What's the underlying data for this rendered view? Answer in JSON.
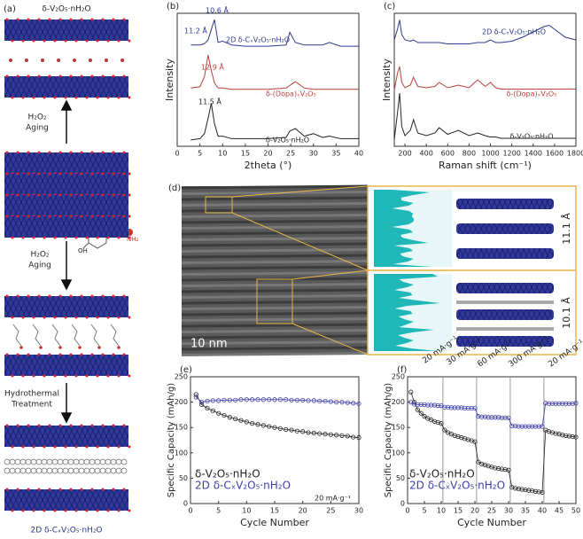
{
  "panel_a": {
    "label": "(a)",
    "top_title": "δ-V₂O₅·nH₂O",
    "arrow_labels": [
      [
        "H₂O₂",
        "Aging"
      ],
      [
        "H₂O₂",
        "Aging"
      ],
      [
        "Hydrothermal",
        "Treatment"
      ]
    ],
    "molecule_labels": [
      "OH",
      "OH",
      "NH₂"
    ],
    "bottom_title": "2D δ-CₓV₂O₅·nH₂O"
  },
  "panel_d": {
    "label": "(d)",
    "scale_bar": "10 nm",
    "spacings": [
      "11.1 Å",
      "10.1 Å"
    ]
  },
  "chart_data": [
    {
      "type": "line",
      "panel_label": "(b)",
      "xlabel": "2theta (°)",
      "ylabel": "Intensity",
      "x": [
        3,
        5,
        6,
        6.8,
        7.5,
        8.2,
        9,
        10,
        12,
        15,
        20,
        24,
        24.8,
        26,
        28,
        30,
        32,
        33.5,
        36,
        40
      ],
      "xlim": [
        0,
        40
      ],
      "xticks": [
        0,
        5,
        10,
        15,
        20,
        25,
        30,
        35,
        40
      ],
      "ylim": [
        0,
        105
      ],
      "annotations": [
        "11.2 Å",
        "10.6 Å",
        "12.9 Å",
        "11.5 Å"
      ],
      "series": [
        {
          "name": "2D δ-CₓV₂O₅·nH₂O",
          "color": "#2b3a8f",
          "values": [
            80,
            80,
            81,
            84,
            92,
            100,
            82,
            83,
            80,
            79,
            79,
            80,
            90,
            82,
            80,
            80,
            80,
            82,
            79,
            79
          ]
        },
        {
          "name": "δ-(Dopa)ₓV₂O₅",
          "color": "#b8413c",
          "values": [
            46,
            47,
            55,
            72,
            60,
            50,
            46,
            46,
            45,
            45,
            45,
            46,
            48,
            51,
            46,
            45,
            45,
            45,
            45,
            45
          ]
        },
        {
          "name": "δ-V₂O₅·nH₂O",
          "color": "#222222",
          "values": [
            5,
            6,
            10,
            22,
            34,
            18,
            8,
            8,
            6,
            6,
            6,
            7,
            12,
            14,
            8,
            10,
            7,
            8,
            6,
            6
          ]
        }
      ]
    },
    {
      "type": "line",
      "panel_label": "(c)",
      "xlabel": "Raman shift (cm⁻¹)",
      "ylabel": "Intensity",
      "x": [
        100,
        130,
        150,
        170,
        200,
        250,
        280,
        320,
        400,
        480,
        520,
        600,
        700,
        800,
        880,
        950,
        1000,
        1050,
        1100,
        1200,
        1300,
        1400,
        1500,
        1550,
        1600,
        1700,
        1800
      ],
      "xlim": [
        100,
        1800
      ],
      "xticks": [
        200,
        400,
        600,
        800,
        1000,
        1200,
        1400,
        1600,
        1800
      ],
      "ylim": [
        0,
        100
      ],
      "series": [
        {
          "name": "2D δ-CₓV₂O₅·nH₂O",
          "color": "#2b3a8f",
          "values": [
            80,
            88,
            95,
            84,
            80,
            79,
            80,
            78,
            78,
            78,
            78,
            77,
            77,
            77,
            78,
            78,
            80,
            78,
            78,
            79,
            82,
            86,
            90,
            91,
            88,
            82,
            80
          ]
        },
        {
          "name": "δ-(Dopa)ₓV₂O₅",
          "color": "#b8413c",
          "values": [
            42,
            55,
            60,
            48,
            44,
            46,
            52,
            45,
            44,
            45,
            48,
            44,
            46,
            44,
            50,
            45,
            48,
            44,
            43,
            43,
            43,
            43,
            43,
            43,
            43,
            43,
            43
          ]
        },
        {
          "name": "δ-V₂O₅·nH₂O",
          "color": "#222222",
          "values": [
            5,
            25,
            40,
            15,
            8,
            12,
            20,
            10,
            8,
            10,
            14,
            9,
            12,
            8,
            10,
            8,
            7,
            7,
            6,
            6,
            6,
            6,
            6,
            6,
            6,
            6,
            6
          ]
        }
      ]
    },
    {
      "type": "line",
      "markers": true,
      "panel_label": "(e)",
      "xlabel": "Cycle Number",
      "ylabel": "Specific Capacity (mAh/g)",
      "x": [
        1,
        2,
        3,
        4,
        5,
        6,
        7,
        8,
        9,
        10,
        11,
        12,
        13,
        14,
        15,
        16,
        17,
        18,
        19,
        20,
        21,
        22,
        23,
        24,
        25,
        26,
        27,
        28,
        29,
        30
      ],
      "xlim": [
        0,
        30
      ],
      "xticks": [
        0,
        5,
        10,
        15,
        20,
        25,
        30
      ],
      "ylim": [
        0,
        250
      ],
      "yticks": [
        0,
        50,
        100,
        150,
        200,
        250
      ],
      "annotations": [
        "20 mA·g⁻¹"
      ],
      "series": [
        {
          "name": "δ-V₂O₅·nH₂O",
          "color": "#222222",
          "values": [
            215,
            195,
            188,
            183,
            178,
            174,
            170,
            167,
            164,
            161,
            158,
            156,
            154,
            152,
            150,
            148,
            146,
            145,
            143,
            142,
            140,
            139,
            138,
            137,
            136,
            135,
            134,
            133,
            131,
            130
          ]
        },
        {
          "name": "2D δ-CₓV₂O₅·nH₂O",
          "color": "#3d3fa8",
          "values": [
            210,
            200,
            202,
            203,
            203,
            204,
            204,
            204,
            205,
            205,
            205,
            205,
            205,
            205,
            205,
            205,
            205,
            204,
            204,
            204,
            203,
            203,
            202,
            202,
            201,
            200,
            200,
            199,
            198,
            197
          ]
        }
      ]
    },
    {
      "type": "line",
      "markers": true,
      "panel_label": "(f)",
      "xlabel": "Cycle Number",
      "ylabel": "Specific Capacity (mAh/g)",
      "x": [
        1,
        2,
        3,
        4,
        5,
        6,
        7,
        8,
        9,
        10,
        11,
        12,
        13,
        14,
        15,
        16,
        17,
        18,
        19,
        20,
        21,
        22,
        23,
        24,
        25,
        26,
        27,
        28,
        29,
        30,
        31,
        32,
        33,
        34,
        35,
        36,
        37,
        38,
        39,
        40,
        41,
        42,
        43,
        44,
        45,
        46,
        47,
        48,
        49,
        50
      ],
      "xlim": [
        0,
        50
      ],
      "xticks": [
        0,
        5,
        10,
        15,
        20,
        25,
        30,
        35,
        40,
        45,
        50
      ],
      "ylim": [
        0,
        250
      ],
      "yticks": [
        0,
        50,
        100,
        150,
        200,
        250
      ],
      "vlines": [
        10.5,
        20.5,
        30.5,
        40.5
      ],
      "annotations": [
        "20 mA·g⁻¹",
        "30 mA·g⁻¹",
        "60 mA·g⁻¹",
        "300 mA·g⁻¹",
        "20 mA·g⁻¹"
      ],
      "series": [
        {
          "name": "δ-V₂O₅·nH₂O",
          "color": "#222222",
          "values": [
            220,
            200,
            185,
            178,
            172,
            168,
            165,
            162,
            160,
            158,
            145,
            140,
            137,
            134,
            132,
            130,
            128,
            126,
            124,
            122,
            82,
            78,
            76,
            74,
            72,
            70,
            69,
            68,
            67,
            66,
            32,
            30,
            29,
            28,
            27,
            26,
            25,
            24,
            23,
            22,
            145,
            142,
            140,
            138,
            137,
            135,
            134,
            133,
            132,
            131
          ]
        },
        {
          "name": "2D δ-CₓV₂O₅·nH₂O",
          "color": "#3d3fa8",
          "values": [
            200,
            196,
            195,
            195,
            195,
            194,
            194,
            194,
            193,
            193,
            190,
            190,
            189,
            189,
            189,
            189,
            188,
            188,
            188,
            188,
            172,
            171,
            171,
            170,
            170,
            170,
            170,
            169,
            169,
            169,
            153,
            153,
            152,
            152,
            152,
            152,
            152,
            152,
            152,
            152,
            198,
            197,
            197,
            197,
            197,
            197,
            197,
            197,
            197,
            198
          ]
        }
      ]
    }
  ]
}
